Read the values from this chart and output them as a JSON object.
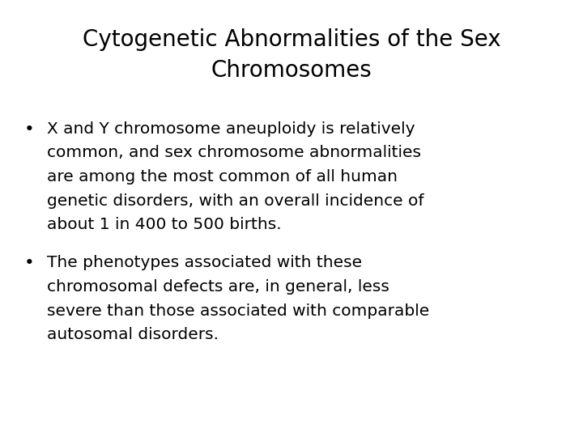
{
  "title_line1": "Cytogenetic Abnormalities of the Sex",
  "title_line2": "Chromosomes",
  "bullet1_lines": [
    "X and Y chromosome aneuploidy is relatively",
    "common, and sex chromosome abnormalities",
    "are among the most common of all human",
    "genetic disorders, with an overall incidence of",
    "about 1 in 400 to 500 births."
  ],
  "bullet2_lines": [
    "The phenotypes associated with these",
    "chromosomal defects are, in general, less",
    "severe than those associated with comparable",
    "autosomal disorders."
  ],
  "background_color": "#ffffff",
  "text_color": "#000000",
  "title_fontsize": 20,
  "body_fontsize": 14.5,
  "font_family": "DejaVu Sans"
}
